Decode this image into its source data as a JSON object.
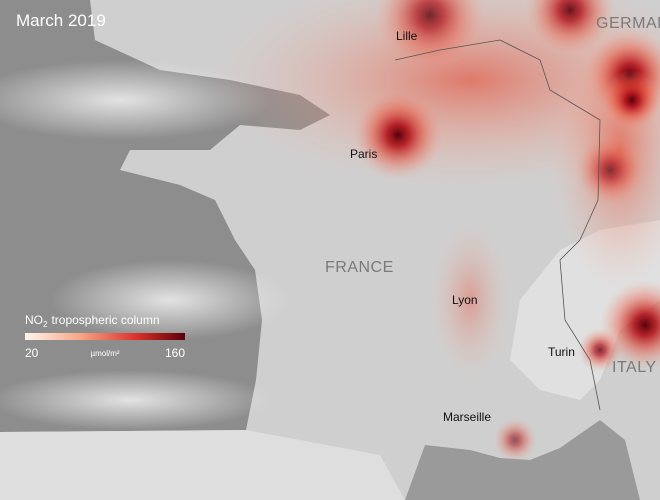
{
  "title": "March 2019",
  "places": {
    "countries": [
      "GERMANY",
      "FRANCE",
      "ITALY"
    ],
    "cities": [
      "Lille",
      "Paris",
      "Lyon",
      "Turin",
      "Marseille"
    ]
  },
  "legend": {
    "title": {
      "chemical": "NO",
      "subscript": "2",
      "text": "tropospheric column"
    },
    "min": 20,
    "max": 160,
    "unit": "µmol/m²"
  }
}
